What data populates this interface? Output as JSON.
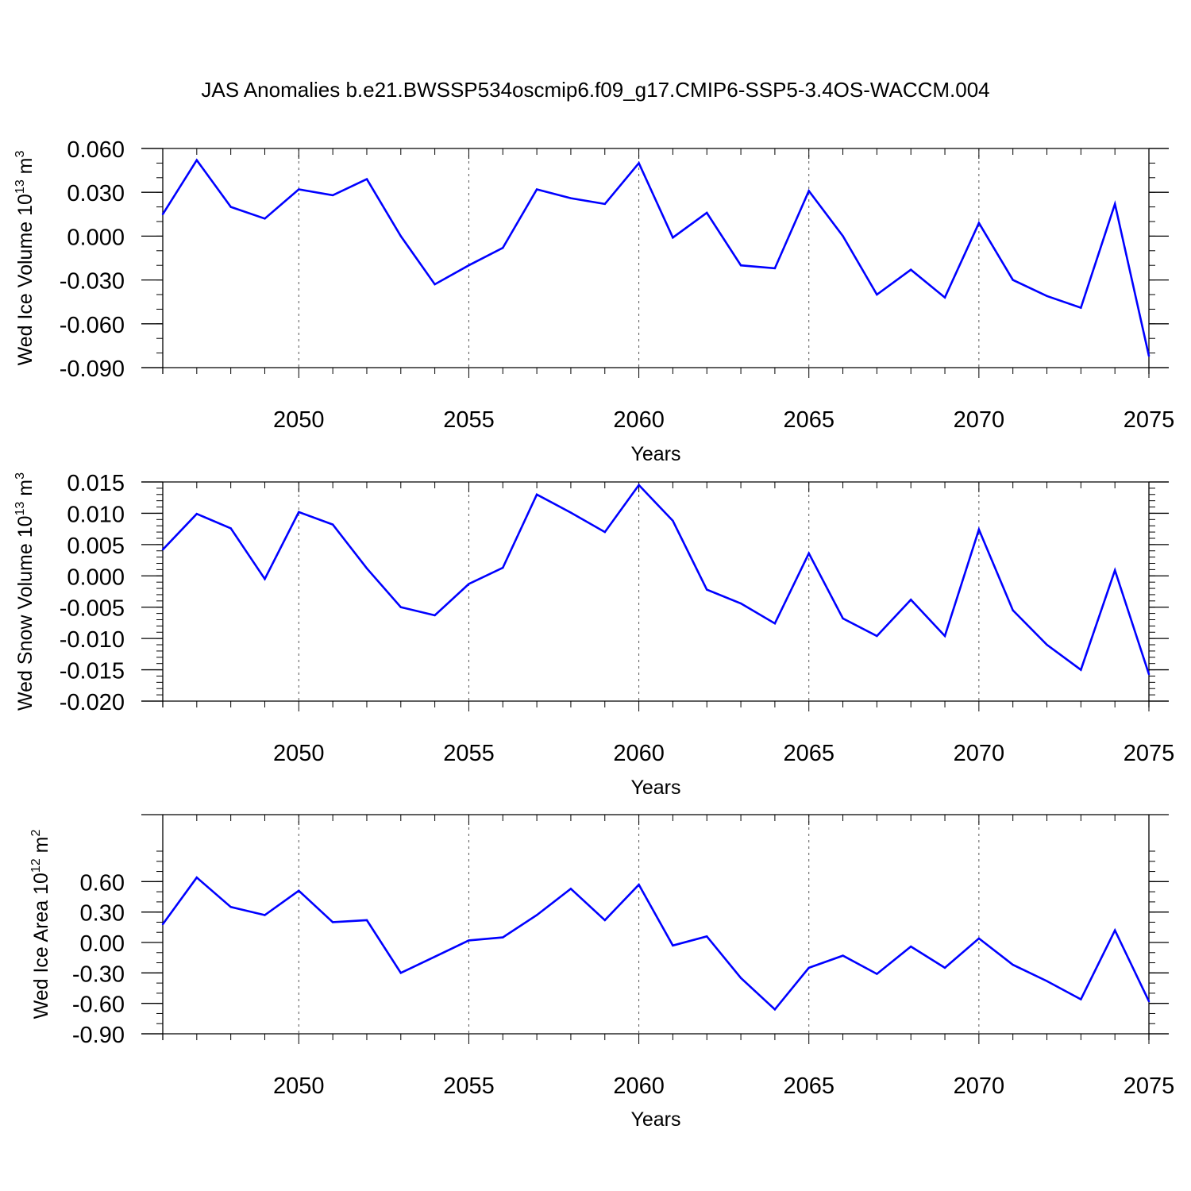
{
  "title": "JAS Anomalies b.e21.BWSSP534oscmip6.f09_g17.CMIP6-SSP5-3.4OS-WACCM.004",
  "line_color": "#0000ff",
  "chart_data": [
    {
      "type": "line",
      "ylabel": {
        "main": "Wed Ice Volume 10",
        "exp": "13",
        "unit": " m",
        "unit_exp": "3"
      },
      "xlabel": "Years",
      "xlim": [
        2046,
        2075
      ],
      "ylim": [
        -0.09,
        0.06
      ],
      "xticks": [
        2050,
        2055,
        2060,
        2065,
        2070,
        2075
      ],
      "yticks": [
        "0.060",
        "0.030",
        "0.000",
        "-0.030",
        "-0.060",
        "-0.090"
      ],
      "ytick_values": [
        0.06,
        0.03,
        0.0,
        -0.03,
        -0.06,
        -0.09
      ],
      "y_minor_step": 0.01,
      "x": [
        2046,
        2047,
        2048,
        2049,
        2050,
        2051,
        2052,
        2053,
        2054,
        2055,
        2056,
        2057,
        2058,
        2059,
        2060,
        2061,
        2062,
        2063,
        2064,
        2065,
        2066,
        2067,
        2068,
        2069,
        2070,
        2071,
        2072,
        2073,
        2074,
        2075
      ],
      "values": [
        0.015,
        0.052,
        0.02,
        0.012,
        0.032,
        0.028,
        0.039,
        0.0,
        -0.033,
        -0.02,
        -0.008,
        0.032,
        0.026,
        0.022,
        0.05,
        -0.001,
        0.016,
        -0.02,
        -0.022,
        0.031,
        0.0,
        -0.04,
        -0.023,
        -0.042,
        0.009,
        -0.03,
        -0.041,
        -0.049,
        0.022,
        -0.082
      ]
    },
    {
      "type": "line",
      "ylabel": {
        "main": "Wed Snow Volume 10",
        "exp": "13",
        "unit": " m",
        "unit_exp": "3"
      },
      "xlabel": "Years",
      "xlim": [
        2046,
        2075
      ],
      "ylim": [
        -0.02,
        0.015
      ],
      "xticks": [
        2050,
        2055,
        2060,
        2065,
        2070,
        2075
      ],
      "yticks": [
        "0.015",
        "0.010",
        "0.005",
        "0.000",
        "-0.005",
        "-0.010",
        "-0.015",
        "-0.020"
      ],
      "ytick_values": [
        0.015,
        0.01,
        0.005,
        0.0,
        -0.005,
        -0.01,
        -0.015,
        -0.02
      ],
      "y_minor_step": 0.001,
      "x": [
        2046,
        2047,
        2048,
        2049,
        2050,
        2051,
        2052,
        2053,
        2054,
        2055,
        2056,
        2057,
        2058,
        2059,
        2060,
        2061,
        2062,
        2063,
        2064,
        2065,
        2066,
        2067,
        2068,
        2069,
        2070,
        2071,
        2072,
        2073,
        2074,
        2075
      ],
      "values": [
        0.0042,
        0.0099,
        0.0076,
        -0.0005,
        0.0102,
        0.0082,
        0.0012,
        -0.005,
        -0.0063,
        -0.0013,
        0.0013,
        0.013,
        0.0101,
        0.007,
        0.0145,
        0.0088,
        -0.0022,
        -0.0044,
        -0.0076,
        0.0036,
        -0.0068,
        -0.0096,
        -0.0038,
        -0.0096,
        0.0074,
        -0.0055,
        -0.011,
        -0.015,
        0.0009,
        -0.0157
      ]
    },
    {
      "type": "line",
      "ylabel": {
        "main": "Wed Ice Area 10",
        "exp": "12",
        "unit": " m",
        "unit_exp": "2"
      },
      "xlabel": "Years",
      "xlim": [
        2046,
        2075
      ],
      "ylim": [
        -0.9,
        0.9
      ],
      "xticks": [
        2050,
        2055,
        2060,
        2065,
        2070,
        2075
      ],
      "yticks": [
        "0.60",
        "0.30",
        "0.00",
        "-0.30",
        "-0.60",
        "-0.90"
      ],
      "ytick_values": [
        0.6,
        0.3,
        0.0,
        -0.3,
        -0.6,
        -0.9
      ],
      "y_minor_step": 0.1,
      "x": [
        2046,
        2047,
        2048,
        2049,
        2050,
        2051,
        2052,
        2053,
        2054,
        2055,
        2056,
        2057,
        2058,
        2059,
        2060,
        2061,
        2062,
        2063,
        2064,
        2065,
        2066,
        2067,
        2068,
        2069,
        2070,
        2071,
        2072,
        2073,
        2074,
        2075
      ],
      "values": [
        0.18,
        0.64,
        0.35,
        0.27,
        0.51,
        0.2,
        0.22,
        -0.3,
        -0.14,
        0.02,
        0.05,
        0.27,
        0.53,
        0.22,
        0.57,
        -0.03,
        0.06,
        -0.35,
        -0.66,
        -0.25,
        -0.13,
        -0.31,
        -0.04,
        -0.25,
        0.04,
        -0.22,
        -0.38,
        -0.56,
        0.12,
        -0.58
      ]
    }
  ]
}
